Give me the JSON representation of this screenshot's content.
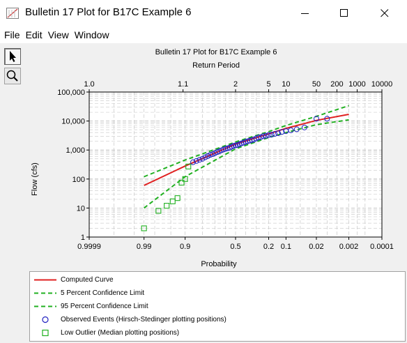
{
  "window": {
    "title": "Bulletin 17 Plot for B17C Example 6",
    "minimize_icon": "minimize-icon",
    "maximize_icon": "maximize-icon",
    "close_icon": "close-icon"
  },
  "menu": {
    "items": [
      "File",
      "Edit",
      "View",
      "Window"
    ]
  },
  "toolbar": {
    "tools": [
      {
        "name": "select-arrow-icon",
        "active": true
      },
      {
        "name": "zoom-magnifier-icon",
        "active": false
      }
    ]
  },
  "chart_data": {
    "type": "scatter",
    "title": "Bulletin 17 Plot for B17C Example 6",
    "top_axis_label": "Return Period",
    "top_ticks": [
      "1.0",
      "1.1",
      "2",
      "5",
      "10",
      "50",
      "200",
      "1000",
      "10000"
    ],
    "top_tick_values": [
      1.0,
      1.1,
      2,
      5,
      10,
      50,
      200,
      1000,
      10000
    ],
    "xlabel": "Probability",
    "x_ticks": [
      "0.9999",
      "0.99",
      "0.9",
      "0.5",
      "0.2",
      "0.1",
      "0.02",
      "0.002",
      "0.0001"
    ],
    "x_tick_values": [
      0.9999,
      0.99,
      0.9,
      0.5,
      0.2,
      0.1,
      0.02,
      0.002,
      0.0001
    ],
    "x_scale": "normal-probability (exceedance, decreasing left to right)",
    "xlim": [
      0.9999,
      0.0001
    ],
    "ylabel": "Flow (cfs)",
    "y_ticks": [
      "1",
      "10",
      "100",
      "1,000",
      "10,000",
      "100,000"
    ],
    "y_tick_values": [
      1,
      10,
      100,
      1000,
      10000,
      100000
    ],
    "y_scale": "log",
    "ylim": [
      1,
      100000
    ],
    "grid": true,
    "legend_position": "bottom",
    "series": [
      {
        "name": "Computed Curve",
        "style": "line",
        "color": "#e02020",
        "x": [
          0.99,
          0.9,
          0.5,
          0.2,
          0.1,
          0.02,
          0.002
        ],
        "y": [
          60,
          280,
          1600,
          3600,
          5600,
          10500,
          17000
        ]
      },
      {
        "name": "5 Percent Confidence Limit",
        "style": "dashed",
        "color": "#20b020",
        "x": [
          0.99,
          0.9,
          0.5,
          0.2,
          0.1,
          0.02,
          0.002
        ],
        "y": [
          120,
          450,
          1900,
          4300,
          7000,
          14500,
          34000
        ]
      },
      {
        "name": "95 Percent Confidence Limit",
        "style": "dashed",
        "color": "#20b020",
        "x": [
          0.99,
          0.9,
          0.5,
          0.2,
          0.1,
          0.02,
          0.002
        ],
        "y": [
          10,
          120,
          1100,
          2700,
          4000,
          7500,
          11000
        ]
      },
      {
        "name": "Observed Events (Hirsch-Stedinger plotting positions)",
        "style": "circle",
        "color": "#2020c0",
        "x": [
          0.86,
          0.84,
          0.82,
          0.8,
          0.78,
          0.76,
          0.74,
          0.72,
          0.7,
          0.68,
          0.66,
          0.64,
          0.62,
          0.6,
          0.58,
          0.56,
          0.54,
          0.52,
          0.5,
          0.48,
          0.46,
          0.44,
          0.42,
          0.4,
          0.38,
          0.36,
          0.34,
          0.32,
          0.3,
          0.28,
          0.26,
          0.24,
          0.22,
          0.2,
          0.18,
          0.16,
          0.14,
          0.12,
          0.1,
          0.08,
          0.06,
          0.04,
          0.02,
          0.01
        ],
        "y": [
          380,
          420,
          460,
          500,
          560,
          620,
          680,
          720,
          780,
          850,
          900,
          980,
          1050,
          1100,
          1150,
          1200,
          1300,
          1400,
          1450,
          1500,
          1600,
          1700,
          1800,
          1900,
          2000,
          2100,
          2200,
          2300,
          2500,
          2700,
          2800,
          3000,
          3100,
          3300,
          3400,
          3600,
          3800,
          4200,
          4500,
          4800,
          5200,
          6000,
          12000,
          12000
        ]
      },
      {
        "name": "Low Outlier (Median plotting positions)",
        "style": "square",
        "color": "#20b020",
        "x": [
          0.99,
          0.975,
          0.96,
          0.945,
          0.93,
          0.915,
          0.9,
          0.885
        ],
        "y": [
          2,
          8,
          12,
          17,
          22,
          75,
          100,
          270
        ]
      }
    ]
  }
}
